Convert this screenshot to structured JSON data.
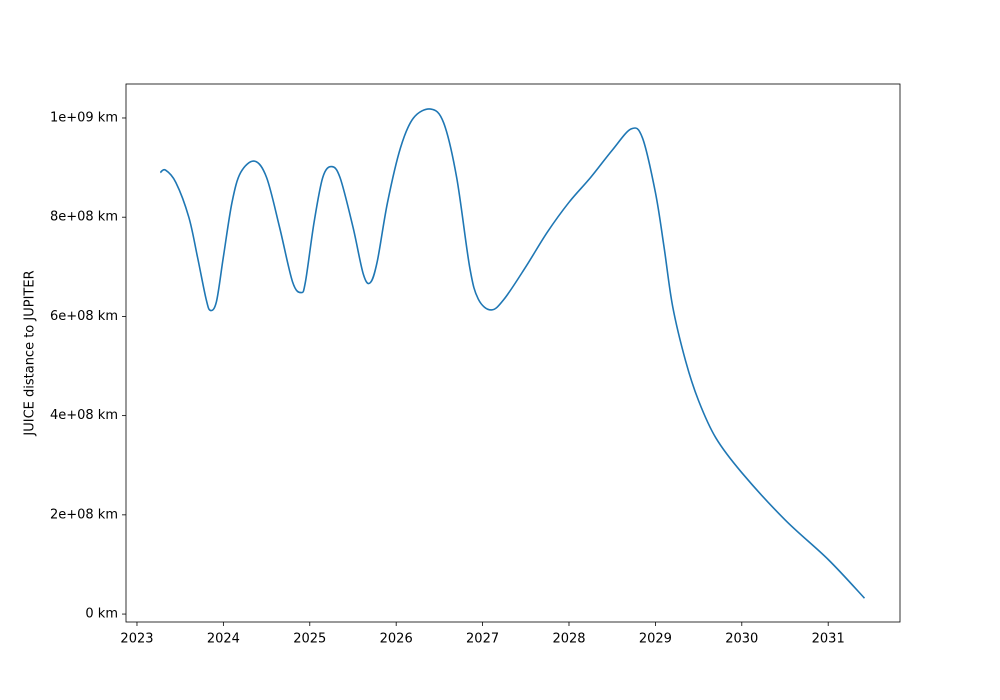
{
  "chart_data": {
    "type": "line",
    "y_label": "JUICE distance to JUPITER",
    "x": [
      2023.27,
      2023.33,
      2023.45,
      2023.6,
      2023.7,
      2023.8,
      2023.85,
      2023.92,
      2024.0,
      2024.1,
      2024.2,
      2024.36,
      2024.5,
      2024.65,
      2024.8,
      2024.9,
      2024.95,
      2025.05,
      2025.15,
      2025.25,
      2025.35,
      2025.5,
      2025.62,
      2025.7,
      2025.78,
      2025.9,
      2026.05,
      2026.2,
      2026.4,
      2026.55,
      2026.7,
      2026.85,
      2026.95,
      2027.1,
      2027.25,
      2027.5,
      2027.75,
      2028.0,
      2028.25,
      2028.5,
      2028.72,
      2028.85,
      2029.0,
      2029.1,
      2029.2,
      2029.35,
      2029.5,
      2029.7,
      2030.0,
      2030.5,
      2031.0,
      2031.42
    ],
    "series": [
      {
        "color": "#1f77b4",
        "values": [
          890000000,
          895000000,
          870000000,
          800000000,
          720000000,
          635000000,
          612000000,
          630000000,
          720000000,
          830000000,
          890000000,
          913000000,
          880000000,
          780000000,
          670000000,
          648000000,
          670000000,
          790000000,
          880000000,
          902000000,
          880000000,
          780000000,
          685000000,
          668000000,
          710000000,
          830000000,
          940000000,
          1000000000,
          1018000000,
          990000000,
          880000000,
          700000000,
          635000000,
          613000000,
          635000000,
          700000000,
          770000000,
          830000000,
          880000000,
          935000000,
          978000000,
          960000000,
          850000000,
          740000000,
          620000000,
          510000000,
          430000000,
          355000000,
          285000000,
          190000000,
          110000000,
          32000000
        ]
      }
    ],
    "xlim": [
      2022.873,
      2031.831
    ],
    "xticks": [
      2023,
      2024,
      2025,
      2026,
      2027,
      2028,
      2029,
      2030,
      2031
    ],
    "ylim": [
      -16000000,
      1068500000
    ],
    "yticks": [
      {
        "value": 0,
        "label": "0 km"
      },
      {
        "value": 200000000,
        "label": "2e+08 km"
      },
      {
        "value": 400000000,
        "label": "4e+08 km"
      },
      {
        "value": 600000000,
        "label": "6e+08 km"
      },
      {
        "value": 800000000,
        "label": "8e+08 km"
      },
      {
        "value": 1000000000,
        "label": "1e+09 km"
      }
    ]
  }
}
